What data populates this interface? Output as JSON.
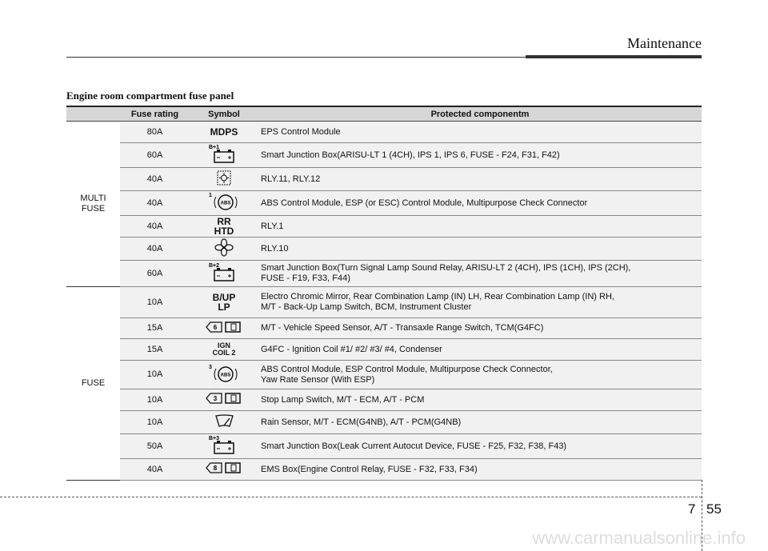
{
  "header": {
    "section": "Maintenance"
  },
  "title": "Engine room compartment fuse panel",
  "table": {
    "columns": [
      "Fuse rating",
      "Symbol",
      "Protected componentm"
    ],
    "groups": [
      {
        "name": "MULTI\nFUSE",
        "rows": [
          {
            "rating": "80A",
            "symbol": "MDPS",
            "component": "EPS Control Module"
          },
          {
            "rating": "60A",
            "symbol": "B+1",
            "component": "Smart Junction Box(ARISU-LT 1 (4CH), IPS 1, IPS 6, FUSE - F24, F31, F42)"
          },
          {
            "rating": "40A",
            "symbol": null,
            "component": "RLY.11, RLY.12"
          },
          {
            "rating": "40A",
            "symbol": [
              "1",
              "ABS"
            ],
            "component": "ABS Control Module, ESP (or ESC) Control Module, Multipurpose Check Connector"
          },
          {
            "rating": "40A",
            "symbol": "RR\nHTD",
            "component": "RLY.1"
          },
          {
            "rating": "40A",
            "symbol": null,
            "component": "RLY.10"
          },
          {
            "rating": "60A",
            "symbol": "B+2",
            "component": "Smart Junction Box(Turn Signal Lamp Sound Relay, ARISU-LT 2 (4CH), IPS (1CH), IPS (2CH),\nFUSE - F19, F33, F44)"
          }
        ]
      },
      {
        "name": "FUSE",
        "rows": [
          {
            "rating": "10A",
            "symbol": "B/UP\nLP",
            "component": "Electro Chromic Mirror, Rear Combination Lamp (IN) LH, Rear Combination Lamp (IN) RH,\nM/T - Back-Up Lamp Switch, BCM, Instrument Cluster"
          },
          {
            "rating": "15A",
            "symbol": "6",
            "component": "M/T - Vehicle Speed Sensor, A/T - Transaxle Range Switch, TCM(G4FC)"
          },
          {
            "rating": "15A",
            "symbol": "IGN\nCOIL 2",
            "component": "G4FC - Ignition Coil #1/ #2/ #3/ #4, Condenser"
          },
          {
            "rating": "10A",
            "symbol": [
              "3",
              "ABS"
            ],
            "component": "ABS Control Module, ESP Control Module, Multipurpose Check Connector,\nYaw Rate Sensor (With ESP)"
          },
          {
            "rating": "10A",
            "symbol": "3",
            "component": "Stop Lamp Switch, M/T - ECM, A/T - PCM"
          },
          {
            "rating": "10A",
            "symbol": null,
            "component": "Rain Sensor, M/T - ECM(G4NB), A/T - PCM(G4NB)"
          },
          {
            "rating": "50A",
            "symbol": "B+3",
            "component": "Smart Junction Box(Leak Current Autocut Device, FUSE - F25, F32, F38, F43)"
          },
          {
            "rating": "40A",
            "symbol": "8",
            "component": "EMS Box(Engine Control Relay, FUSE - F32, F33, F34)"
          }
        ]
      }
    ]
  },
  "footer": {
    "chapter": "7",
    "page": "55",
    "watermark": "www.carmanualsonline.info"
  }
}
